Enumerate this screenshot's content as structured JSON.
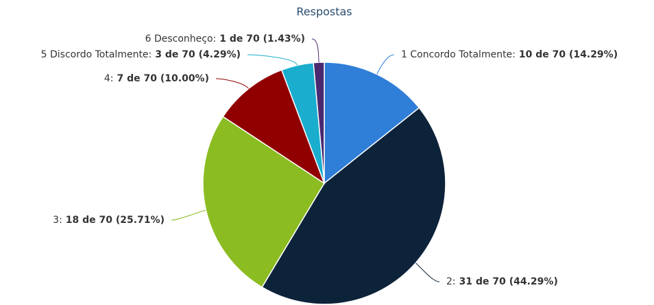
{
  "chart_data": {
    "type": "pie",
    "title": "Respostas",
    "categories": [
      "1 Concordo Totalmente:",
      "2:",
      "3:",
      "4:",
      "5 Discordo Totalmente:",
      "6 Desconheço:"
    ],
    "values": [
      10,
      31,
      18,
      7,
      3,
      1
    ],
    "value_labels": [
      "10 de 70 (14.29%)",
      "31 de 70 (44.29%)",
      "18 de 70 (25.71%)",
      "7 de 70 (10.00%)",
      "3 de 70 (4.29%)",
      "1 de 70 (1.43%)"
    ],
    "colors": [
      "#2f7ed8",
      "#0d233a",
      "#8bbc21",
      "#910000",
      "#1aadce",
      "#492970"
    ]
  }
}
